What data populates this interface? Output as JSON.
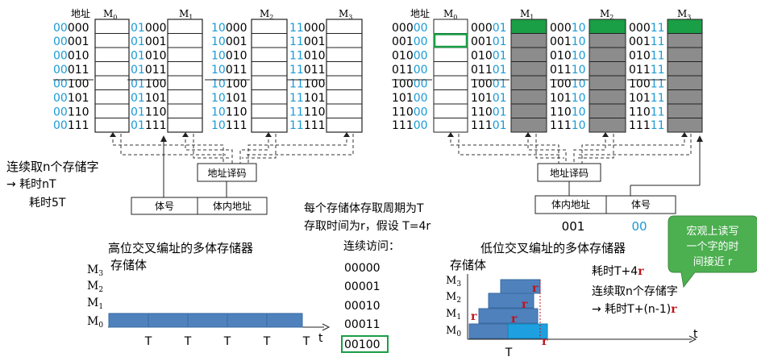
{
  "left": {
    "addr_header": "地址",
    "modules": [
      {
        "label": "M",
        "sub": "0"
      },
      {
        "label": "M",
        "sub": "1"
      },
      {
        "label": "M",
        "sub": "2"
      },
      {
        "label": "M",
        "sub": "3"
      }
    ],
    "prefixes": [
      "00",
      "01",
      "10",
      "11"
    ],
    "suffixes": [
      "000",
      "001",
      "010",
      "011",
      "100",
      "101",
      "110",
      "111"
    ],
    "decoder": "地址译码",
    "field_bank": "体号",
    "field_offset": "体内地址",
    "continuous_line1": "连续取n个存储字",
    "continuous_line2": "→ 耗时nT",
    "continuous_line3": "耗时5T"
  },
  "right": {
    "addr_header": "地址",
    "modules": [
      {
        "label": "M",
        "sub": "0"
      },
      {
        "label": "M",
        "sub": "1"
      },
      {
        "label": "M",
        "sub": "2"
      },
      {
        "label": "M",
        "sub": "3"
      }
    ],
    "m0_prefixes": [
      "000",
      "001",
      "010",
      "011",
      "100",
      "101",
      "110",
      "111"
    ],
    "m0_suffix": "00",
    "m1_prefixes": [
      "000",
      "001",
      "010",
      "011",
      "100",
      "101",
      "110",
      "111"
    ],
    "m1_suffix": "01",
    "m2_prefixes": [
      "000",
      "001",
      "010",
      "011",
      "100",
      "101",
      "110",
      "111"
    ],
    "m2_suffix": "10",
    "m3_prefixes": [
      "000",
      "001",
      "010",
      "011",
      "100",
      "101",
      "110",
      "111"
    ],
    "m3_suffix": "11",
    "decoder": "地址译码",
    "field_offset": "体内地址",
    "field_bank": "体号",
    "val_offset": "001",
    "val_bank": "00",
    "callout": "宏观上读写一个字的时间接近 r",
    "callout_lines": [
      "宏观上读写",
      "一个字的时",
      "间接近 r"
    ],
    "colors": {
      "green": "#1a9e46",
      "gray": "#8c8c8c",
      "callout": "#4caf50"
    }
  },
  "center": {
    "cycle_line1": "每个存储体存取周期为T",
    "cycle_line2": "存取时间为r，假设 T=4r",
    "seq_title": "连续访问：",
    "seq": [
      "00000",
      "00001",
      "00010",
      "00011",
      "00100"
    ]
  },
  "timing_high": {
    "title": "高位交叉编址的多体存储器",
    "ylabel": "存储体",
    "rows": [
      {
        "label": "M",
        "sub": "3"
      },
      {
        "label": "M",
        "sub": "2"
      },
      {
        "label": "M",
        "sub": "1"
      },
      {
        "label": "M",
        "sub": "0"
      }
    ],
    "t_label": "t",
    "ticks": [
      "T",
      "T",
      "T",
      "T",
      "T"
    ],
    "bar_color": "#4f81bd"
  },
  "timing_low": {
    "title": "低位交叉编址的多体存储器",
    "ylabel": "存储体",
    "rows": [
      {
        "label": "M",
        "sub": "3"
      },
      {
        "label": "M",
        "sub": "2"
      },
      {
        "label": "M",
        "sub": "1"
      },
      {
        "label": "M",
        "sub": "0"
      }
    ],
    "t_label": "t",
    "tick": "T",
    "r": "r",
    "cost_prefix": "耗时T+4",
    "cont_line1": "连续取n个存储字",
    "cont_line2_prefix": "→ 耗时T+(n-1)",
    "bar_color": "#4f81bd",
    "bar_light": "#1ea0e0"
  }
}
